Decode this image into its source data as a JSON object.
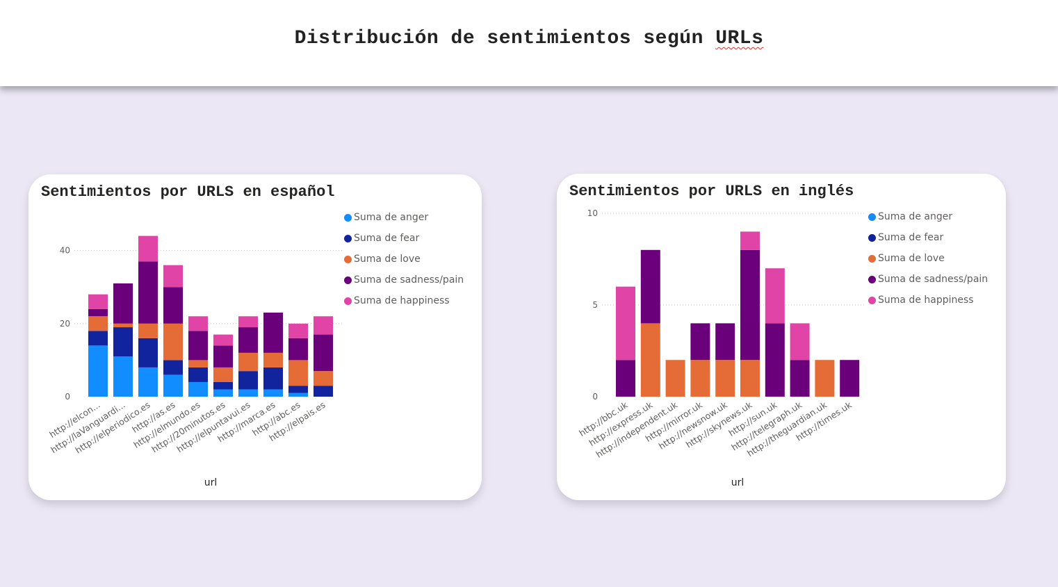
{
  "page": {
    "title_main": "Distribución de sentimientos según ",
    "title_urls": "URLs"
  },
  "colors": {
    "anger": "#118dff",
    "fear": "#12239e",
    "love": "#e66c37",
    "sadness": "#6b007b",
    "happiness": "#e044a7",
    "background": "#ebe7f5"
  },
  "chart_data": [
    {
      "type": "bar",
      "stacked": true,
      "title": "Sentimientos por URLS en español",
      "xlabel": "url",
      "ylabel": "",
      "ylim": [
        0,
        50
      ],
      "yticks": [
        0,
        20,
        40
      ],
      "grid": true,
      "legend_position": "top-right",
      "categories": [
        "http://elcon...",
        "http://laVanguardi...",
        "http://elperiodico.es",
        "http://as.es",
        "http://elmundo.es",
        "http://20minutos.es",
        "http://elpuntavui.es",
        "http://marca.es",
        "http://abc.es",
        "http://elpais.es"
      ],
      "series": [
        {
          "name": "Suma de anger",
          "key": "anger",
          "values": [
            14,
            11,
            8,
            6,
            4,
            2,
            2,
            2,
            1,
            0
          ]
        },
        {
          "name": "Suma de fear",
          "key": "fear",
          "values": [
            4,
            8,
            8,
            4,
            4,
            2,
            5,
            6,
            2,
            3
          ]
        },
        {
          "name": "Suma de love",
          "key": "love",
          "values": [
            4,
            1,
            4,
            10,
            2,
            4,
            5,
            4,
            7,
            4
          ]
        },
        {
          "name": "Suma de sadness/pain",
          "key": "sadness",
          "values": [
            2,
            11,
            17,
            10,
            8,
            6,
            7,
            11,
            6,
            10
          ]
        },
        {
          "name": "Suma de happiness",
          "key": "happiness",
          "values": [
            4,
            0,
            7,
            6,
            4,
            3,
            3,
            0,
            4,
            5
          ]
        }
      ]
    },
    {
      "type": "bar",
      "stacked": true,
      "title": "Sentimientos por URLS en inglés",
      "xlabel": "url",
      "ylabel": "",
      "ylim": [
        0,
        10
      ],
      "yticks": [
        0,
        5,
        10
      ],
      "grid": true,
      "legend_position": "top-right",
      "categories": [
        "http://bbc.uk",
        "http://express.uk",
        "http://independent.uk",
        "http://mirror.uk",
        "http://newsnow.uk",
        "http://skynews.uk",
        "http://sun.uk",
        "http://telegraph.uk",
        "http://theguardian.uk",
        "http://times.uk"
      ],
      "series": [
        {
          "name": "Suma de anger",
          "key": "anger",
          "values": [
            0,
            0,
            0,
            0,
            0,
            0,
            0,
            0,
            0,
            0
          ]
        },
        {
          "name": "Suma de fear",
          "key": "fear",
          "values": [
            0,
            0,
            0,
            0,
            0,
            0,
            0,
            0,
            0,
            0
          ]
        },
        {
          "name": "Suma de love",
          "key": "love",
          "values": [
            0,
            4,
            2,
            2,
            2,
            2,
            0,
            0,
            2,
            0
          ]
        },
        {
          "name": "Suma de sadness/pain",
          "key": "sadness",
          "values": [
            2,
            4,
            0,
            2,
            2,
            6,
            4,
            2,
            0,
            2
          ]
        },
        {
          "name": "Suma de happiness",
          "key": "happiness",
          "values": [
            4,
            0,
            0,
            0,
            0,
            1,
            3,
            2,
            0,
            0
          ]
        }
      ]
    }
  ]
}
